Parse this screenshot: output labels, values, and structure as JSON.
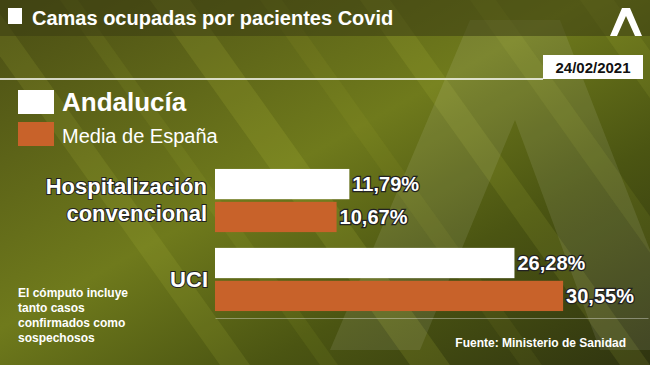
{
  "chart_data": {
    "type": "bar",
    "title": "Camas ocupadas por pacientes Covid",
    "subtitle": "24/02/2021",
    "annotations": [
      "El cómputo incluye tanto casos confirmados como sospechosos",
      "Fuente: Ministerio de Sanidad"
    ],
    "orientation": "horizontal",
    "categories": [
      "Hospitalización convencional",
      "UCI"
    ],
    "series": [
      {
        "name": "Andalucía",
        "color": "#ffffff",
        "values": [
          11.79,
          26.28
        ],
        "value_labels": [
          "11,79%",
          "26,28%"
        ]
      },
      {
        "name": "Media de España",
        "color": "#c8622a",
        "values": [
          10.67,
          30.55
        ],
        "value_labels": [
          "10,67%",
          "30,55%"
        ]
      }
    ],
    "xlim": [
      0,
      38
    ],
    "xticks": [],
    "tick_labels": false,
    "data_labels": true,
    "grid": false,
    "legend": "top-left"
  }
}
